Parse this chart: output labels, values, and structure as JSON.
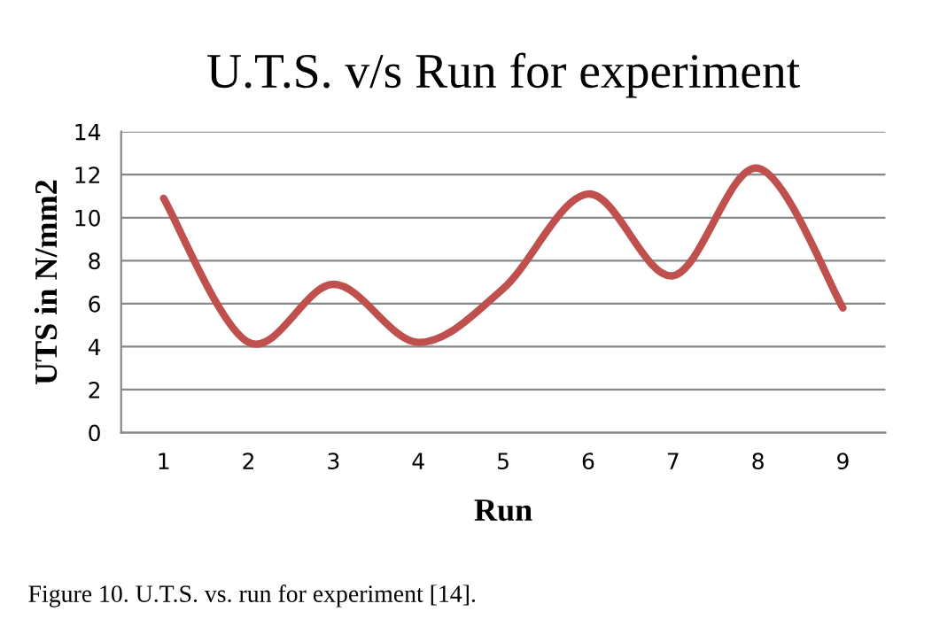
{
  "chart_data": {
    "type": "line",
    "title": "U.T.S. v/s Run for experiment",
    "xlabel": "Run",
    "ylabel": "UTS in N/mm2",
    "categories": [
      "1",
      "2",
      "3",
      "4",
      "5",
      "6",
      "7",
      "8",
      "9"
    ],
    "series": [
      {
        "color": "#c0504d",
        "values": [
          10.9,
          4.2,
          6.9,
          4.2,
          6.7,
          11.1,
          7.3,
          12.3,
          5.8
        ]
      }
    ],
    "ylim": [
      0,
      14
    ],
    "yticks": [
      0,
      2,
      4,
      6,
      8,
      10,
      12,
      14
    ],
    "grid": "y",
    "legend": false,
    "marker": "none",
    "line_style": "solid",
    "annotations": [
      "Figure 10. U.T.S. vs. run for experiment [14]."
    ]
  }
}
